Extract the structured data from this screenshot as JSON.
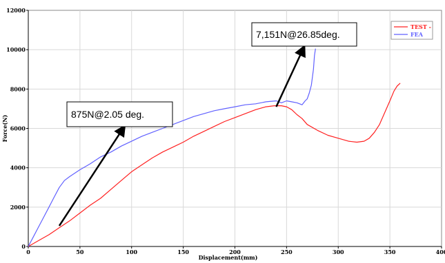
{
  "chart_data": {
    "type": "line",
    "xlabel": "Displacement(mm)",
    "ylabel": "Force(N)",
    "xlim": [
      0,
      400
    ],
    "ylim": [
      0,
      12000
    ],
    "xticks": [
      0,
      50,
      100,
      150,
      200,
      250,
      300,
      350,
      400
    ],
    "yticks": [
      0,
      2000,
      4000,
      6000,
      8000,
      10000,
      12000
    ],
    "grid": true,
    "legend_position": "top-right",
    "series": [
      {
        "name": "TEST -",
        "color": "#ff2020",
        "x": [
          0,
          10,
          20,
          30,
          40,
          50,
          60,
          70,
          80,
          90,
          100,
          110,
          120,
          130,
          140,
          150,
          160,
          170,
          180,
          190,
          200,
          210,
          220,
          230,
          238,
          245,
          250,
          255,
          260,
          265,
          270,
          280,
          290,
          300,
          310,
          318,
          325,
          330,
          335,
          340,
          345,
          350,
          354,
          357,
          360
        ],
        "y": [
          0,
          300,
          600,
          950,
          1300,
          1700,
          2100,
          2450,
          2900,
          3350,
          3800,
          4150,
          4500,
          4800,
          5050,
          5300,
          5600,
          5850,
          6100,
          6350,
          6550,
          6750,
          6950,
          7100,
          7151,
          7150,
          7100,
          6950,
          6700,
          6500,
          6200,
          5900,
          5650,
          5500,
          5350,
          5300,
          5350,
          5500,
          5800,
          6200,
          6800,
          7400,
          7900,
          8150,
          8300
        ]
      },
      {
        "name": "FEA",
        "color": "#6060ff",
        "x": [
          0,
          5,
          10,
          15,
          20,
          25,
          30,
          35,
          40,
          50,
          60,
          70,
          80,
          90,
          100,
          110,
          120,
          130,
          140,
          150,
          160,
          170,
          180,
          190,
          200,
          210,
          220,
          230,
          240,
          245,
          250,
          255,
          260,
          265,
          268,
          270,
          272,
          274,
          276,
          277,
          278
        ],
        "y": [
          0,
          500,
          1000,
          1500,
          2000,
          2500,
          3000,
          3350,
          3550,
          3900,
          4200,
          4550,
          4800,
          5100,
          5350,
          5600,
          5800,
          6000,
          6200,
          6400,
          6600,
          6750,
          6900,
          7000,
          7100,
          7200,
          7250,
          7350,
          7400,
          7300,
          7400,
          7350,
          7300,
          7200,
          7400,
          7500,
          7800,
          8200,
          9000,
          9700,
          10050
        ]
      }
    ],
    "annotations": [
      {
        "text": "875N@2.05 deg.",
        "from": [
          30,
          1050
        ],
        "to": [
          93,
          6100
        ]
      },
      {
        "text": "7,151N@26.85deg.",
        "from": [
          240,
          7100
        ],
        "to": [
          267,
          10150
        ]
      }
    ]
  }
}
